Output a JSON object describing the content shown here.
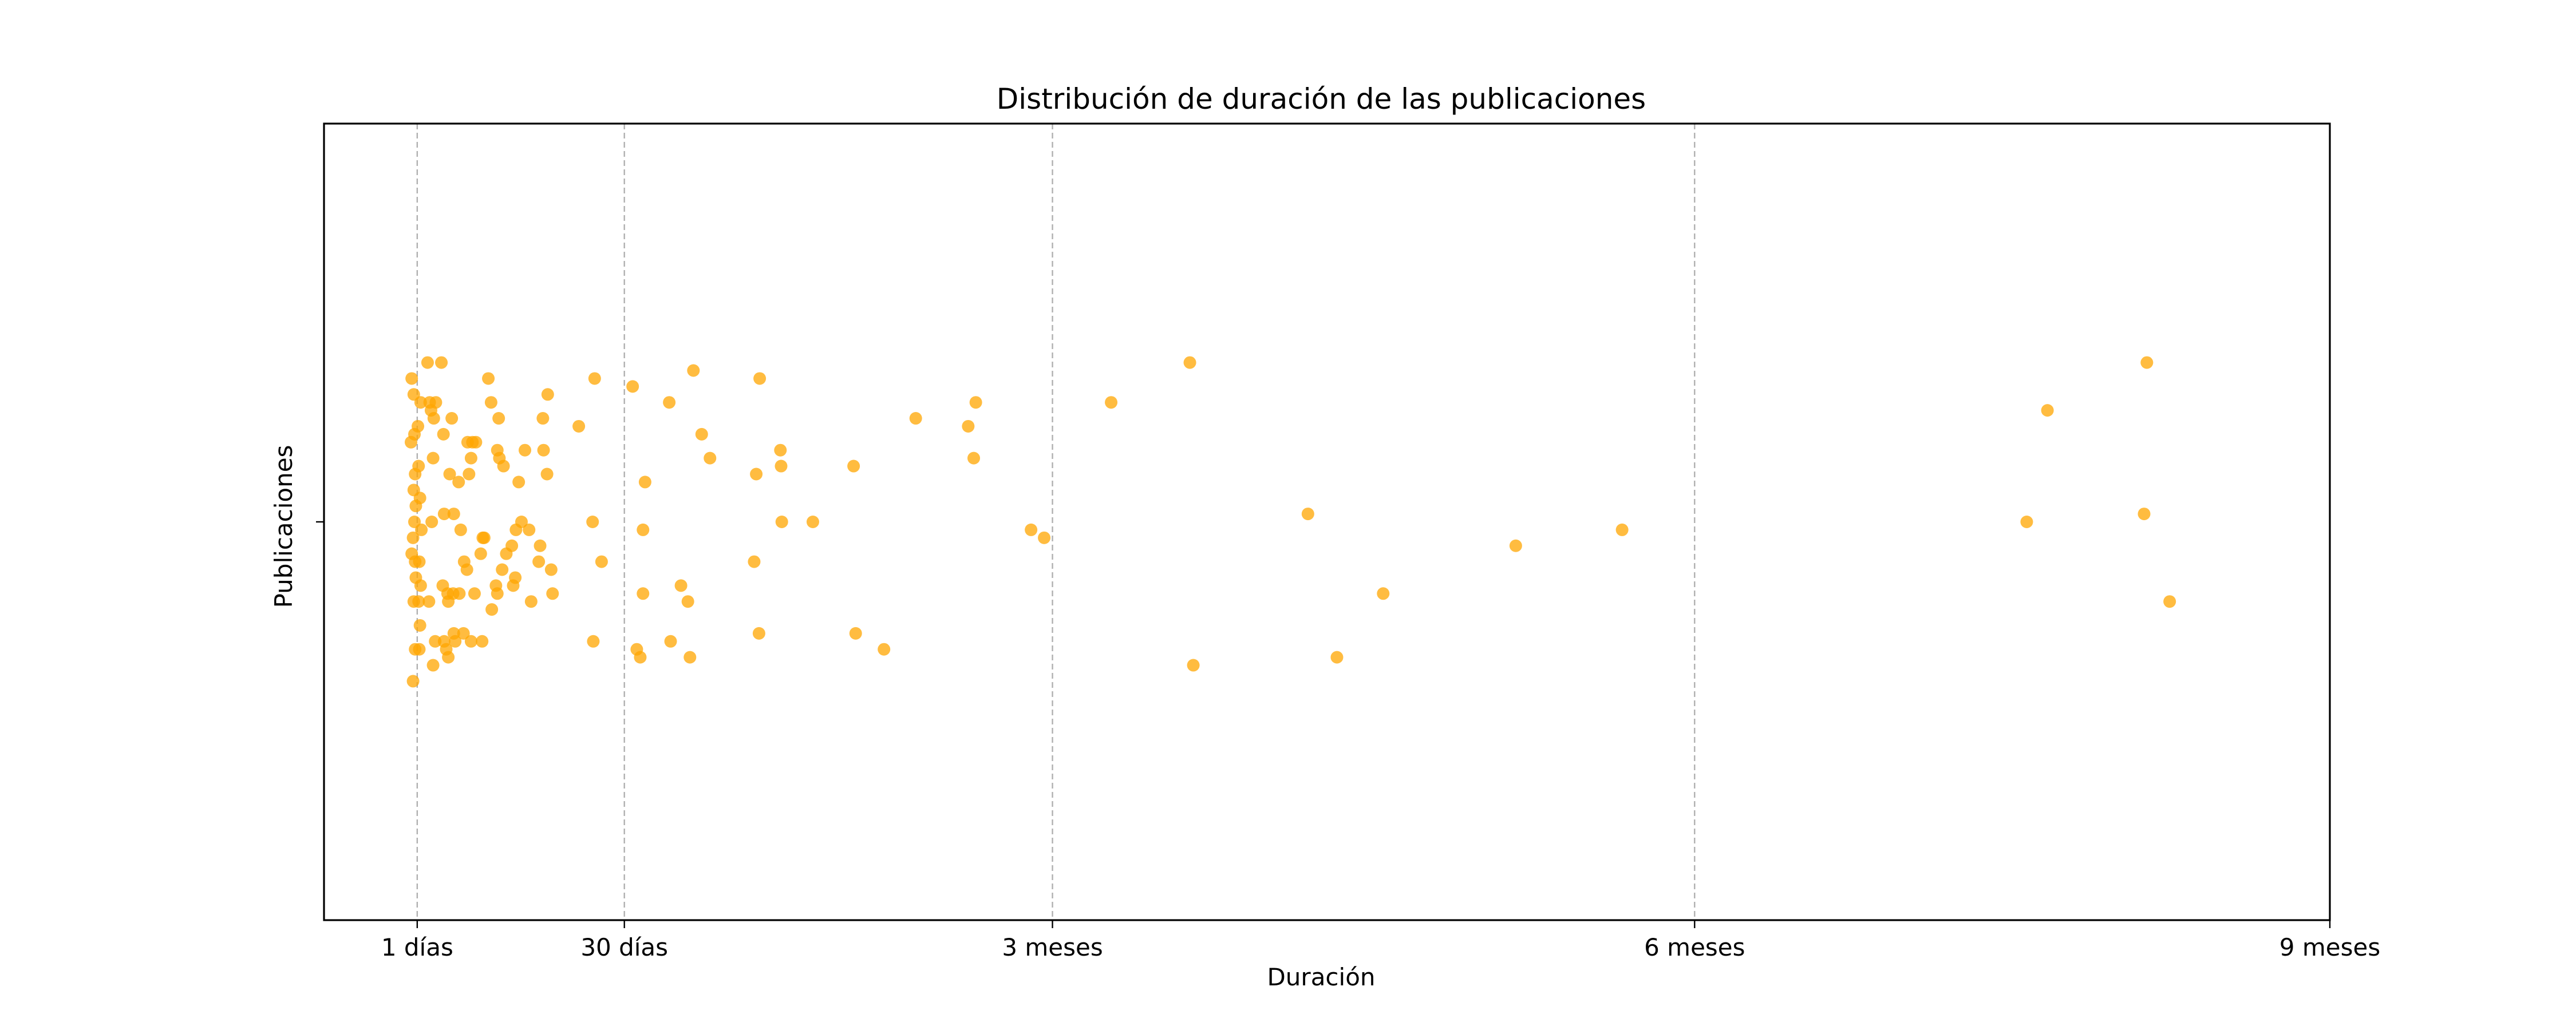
{
  "chart_data": {
    "type": "scatter",
    "title": "Distribución de duración de las publicaciones",
    "xlabel": "Duración",
    "ylabel": "Publicaciones",
    "x_unit": "days",
    "xlim": [
      -13.5,
      277
    ],
    "ylim": [
      -0.5,
      0.5
    ],
    "grid": "vertical dashed lines at x ticks",
    "legend": "none",
    "marker_color": "#FFA500",
    "marker_opacity": 0.75,
    "x_ticks": [
      {
        "value": 0,
        "label": "1 días"
      },
      {
        "value": 30,
        "label": "30 días"
      },
      {
        "value": 92,
        "label": "3 meses"
      },
      {
        "value": 185,
        "label": "6 meses"
      },
      {
        "value": 277,
        "label": "9 meses"
      }
    ],
    "y_ticks": [
      {
        "value": 0,
        "label": ""
      }
    ],
    "series": [
      {
        "points": [
          [
            -0.8,
            0.18
          ],
          [
            -0.5,
            0.16
          ],
          [
            -0.4,
            0.11
          ],
          [
            -0.9,
            0.1
          ],
          [
            -0.3,
            0.06
          ],
          [
            -0.5,
            0.04
          ],
          [
            -0.2,
            0.02
          ],
          [
            -0.4,
            0.0
          ],
          [
            -0.6,
            -0.02
          ],
          [
            -0.3,
            -0.05
          ],
          [
            -0.8,
            -0.04
          ],
          [
            -0.2,
            -0.07
          ],
          [
            -0.5,
            -0.1
          ],
          [
            -0.3,
            -0.16
          ],
          [
            -0.6,
            -0.2
          ],
          [
            0.2,
            0.07
          ],
          [
            0.4,
            0.03
          ],
          [
            0.6,
            -0.01
          ],
          [
            0.3,
            -0.05
          ],
          [
            0.5,
            -0.08
          ],
          [
            0.2,
            -0.1
          ],
          [
            0.4,
            -0.13
          ],
          [
            0.3,
            -0.16
          ],
          [
            0.1,
            0.12
          ],
          [
            0.5,
            0.15
          ],
          [
            1.5,
            0.2
          ],
          [
            1.8,
            0.15
          ],
          [
            2.0,
            0.14
          ],
          [
            2.4,
            0.13
          ],
          [
            2.7,
            0.15
          ],
          [
            2.3,
            0.08
          ],
          [
            1.7,
            -0.1
          ],
          [
            2.3,
            -0.18
          ],
          [
            2.6,
            -0.15
          ],
          [
            2.1,
            0.0
          ],
          [
            3.5,
            0.2
          ],
          [
            3.8,
            0.11
          ],
          [
            3.9,
            0.01
          ],
          [
            3.7,
            -0.08
          ],
          [
            3.9,
            -0.15
          ],
          [
            4.2,
            -0.16
          ],
          [
            4.5,
            -0.1
          ],
          [
            4.7,
            0.06
          ],
          [
            4.4,
            -0.09
          ],
          [
            4.5,
            -0.17
          ],
          [
            5.0,
            0.13
          ],
          [
            5.3,
            0.01
          ],
          [
            5.3,
            -0.14
          ],
          [
            5.5,
            -0.15
          ],
          [
            5.2,
            -0.09
          ],
          [
            6.0,
            0.05
          ],
          [
            6.1,
            -0.09
          ],
          [
            6.3,
            -0.01
          ],
          [
            6.8,
            -0.05
          ],
          [
            6.7,
            -0.14
          ],
          [
            7.3,
            0.1
          ],
          [
            7.8,
            0.08
          ],
          [
            7.5,
            0.06
          ],
          [
            7.8,
            -0.15
          ],
          [
            7.2,
            -0.06
          ],
          [
            8.0,
            0.1
          ],
          [
            8.5,
            0.1
          ],
          [
            8.3,
            -0.09
          ],
          [
            9.2,
            -0.04
          ],
          [
            9.5,
            -0.02
          ],
          [
            9.7,
            -0.02
          ],
          [
            9.4,
            -0.15
          ],
          [
            10.3,
            0.18
          ],
          [
            10.7,
            0.15
          ],
          [
            11.6,
            0.09
          ],
          [
            11.8,
            0.13
          ],
          [
            11.9,
            0.08
          ],
          [
            11.4,
            -0.08
          ],
          [
            11.6,
            -0.09
          ],
          [
            10.8,
            -0.11
          ],
          [
            12.3,
            -0.06
          ],
          [
            12.5,
            0.07
          ],
          [
            12.9,
            -0.04
          ],
          [
            13.7,
            -0.03
          ],
          [
            13.9,
            -0.08
          ],
          [
            14.2,
            -0.07
          ],
          [
            14.7,
            0.05
          ],
          [
            15.1,
            0.0
          ],
          [
            14.3,
            -0.01
          ],
          [
            15.6,
            0.09
          ],
          [
            16.2,
            -0.01
          ],
          [
            16.5,
            -0.1
          ],
          [
            17.8,
            -0.03
          ],
          [
            18.2,
            0.13
          ],
          [
            17.6,
            -0.05
          ],
          [
            18.3,
            0.09
          ],
          [
            18.8,
            0.06
          ],
          [
            18.9,
            0.16
          ],
          [
            19.4,
            -0.06
          ],
          [
            19.6,
            -0.09
          ],
          [
            23.4,
            0.12
          ],
          [
            25.4,
            0.0
          ],
          [
            25.7,
            0.18
          ],
          [
            25.5,
            -0.15
          ],
          [
            26.7,
            -0.05
          ],
          [
            31.2,
            0.17
          ],
          [
            31.8,
            -0.16
          ],
          [
            32.3,
            -0.17
          ],
          [
            32.7,
            -0.01
          ],
          [
            32.7,
            -0.09
          ],
          [
            33.0,
            0.05
          ],
          [
            36.5,
            0.15
          ],
          [
            36.7,
            -0.15
          ],
          [
            38.2,
            -0.08
          ],
          [
            39.2,
            -0.1
          ],
          [
            39.5,
            -0.17
          ],
          [
            40.0,
            0.19
          ],
          [
            41.2,
            0.11
          ],
          [
            42.4,
            0.08
          ],
          [
            48.8,
            -0.05
          ],
          [
            49.1,
            0.06
          ],
          [
            49.5,
            -0.14
          ],
          [
            49.6,
            0.18
          ],
          [
            52.6,
            0.09
          ],
          [
            52.7,
            0.07
          ],
          [
            52.8,
            0.0
          ],
          [
            57.3,
            0.0
          ],
          [
            63.2,
            0.07
          ],
          [
            63.5,
            -0.14
          ],
          [
            67.6,
            -0.16
          ],
          [
            72.2,
            0.13
          ],
          [
            79.8,
            0.12
          ],
          [
            80.6,
            0.08
          ],
          [
            80.9,
            0.15
          ],
          [
            88.9,
            -0.01
          ],
          [
            90.8,
            -0.02
          ],
          [
            100.5,
            0.15
          ],
          [
            111.9,
            0.2
          ],
          [
            112.4,
            -0.18
          ],
          [
            129.0,
            0.01
          ],
          [
            133.2,
            -0.17
          ],
          [
            139.9,
            -0.09
          ],
          [
            159.1,
            -0.03
          ],
          [
            174.5,
            -0.01
          ],
          [
            233.1,
            0.0
          ],
          [
            236.1,
            0.14
          ],
          [
            250.1,
            0.01
          ],
          [
            250.5,
            0.2
          ],
          [
            253.8,
            -0.1
          ]
        ]
      }
    ]
  }
}
